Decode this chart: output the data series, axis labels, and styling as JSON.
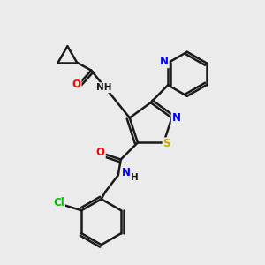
{
  "background_color": "#ebebeb",
  "bond_color": "#1a1a1a",
  "bond_width": 1.8,
  "atom_colors": {
    "N": "#0000ff",
    "O": "#ff0000",
    "S": "#ccaa00",
    "Cl": "#00bb00",
    "C": "#1a1a1a",
    "H": "#1a1a1a"
  },
  "font_size": 7.5,
  "background_color_hex": "#ebebeb"
}
